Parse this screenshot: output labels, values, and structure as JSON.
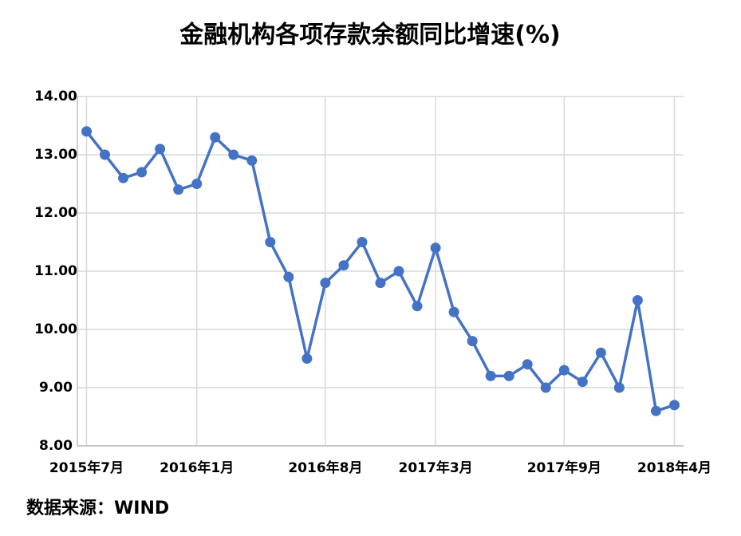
{
  "chart_data": {
    "type": "line",
    "title": "金融机构各项存款余额同比增速(%)",
    "source": "数据来源：WIND",
    "categories": [
      "2015年7月",
      null,
      null,
      null,
      null,
      null,
      "2016年1月",
      null,
      null,
      null,
      null,
      null,
      null,
      "2016年8月",
      null,
      null,
      null,
      null,
      null,
      "2017年3月",
      null,
      null,
      null,
      null,
      null,
      null,
      "2017年9月",
      null,
      null,
      null,
      null,
      null,
      "2018年4月"
    ],
    "series": [
      {
        "name": "金融机构各项存款余额同比增速",
        "color": "#4472c4",
        "values": [
          13.4,
          13.0,
          12.6,
          12.7,
          13.1,
          12.4,
          12.5,
          13.3,
          13.0,
          12.9,
          11.5,
          10.9,
          9.5,
          10.8,
          11.1,
          11.5,
          10.8,
          11.0,
          10.4,
          11.4,
          10.3,
          9.8,
          9.2,
          9.2,
          9.4,
          9.0,
          9.3,
          9.1,
          9.6,
          9.0,
          10.5,
          8.6,
          8.7
        ]
      }
    ],
    "ylim": [
      8,
      14
    ],
    "yticks": [
      {
        "value": 8,
        "label": "8.00"
      },
      {
        "value": 9,
        "label": "9.00"
      },
      {
        "value": 10,
        "label": "10.00"
      },
      {
        "value": 11,
        "label": "11.00"
      },
      {
        "value": 12,
        "label": "12.00"
      },
      {
        "value": 13,
        "label": "13.00"
      },
      {
        "value": 14,
        "label": "14.00"
      }
    ],
    "grid": true
  }
}
